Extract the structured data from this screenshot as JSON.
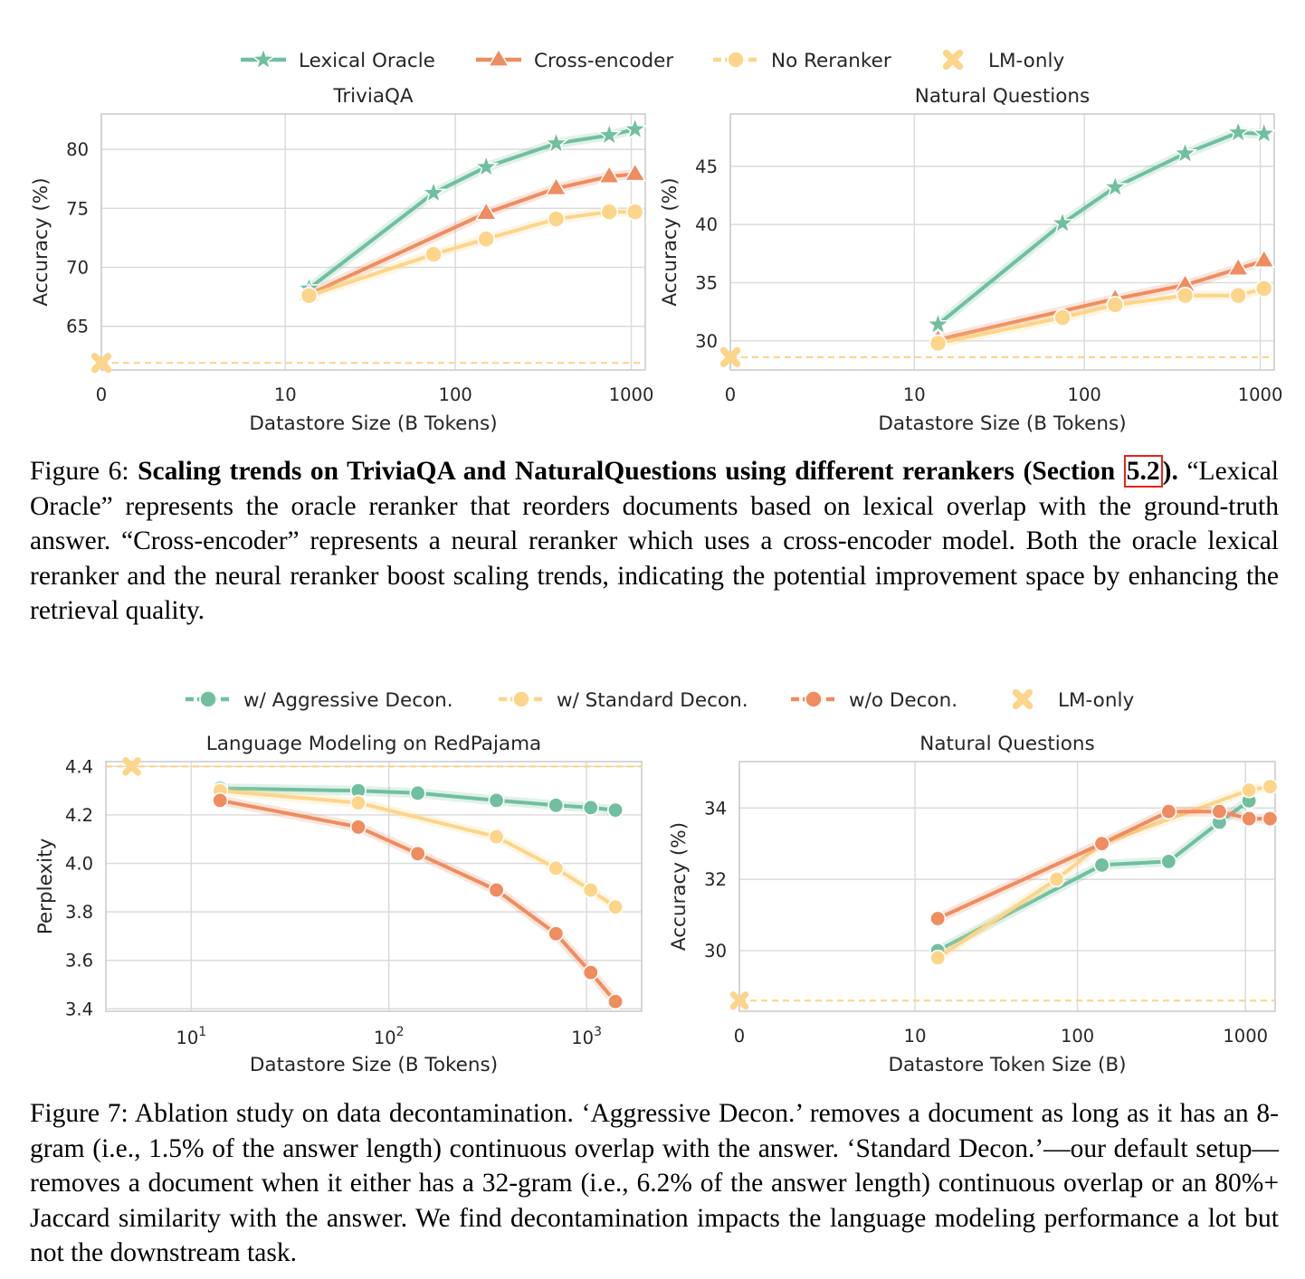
{
  "colors": {
    "lexical_oracle": "#70bf9f",
    "cross_encoder": "#ef8c60",
    "no_reranker": "#fcd58a",
    "lm_only": "#fcd58a",
    "aggressive": "#70bf9f",
    "standard": "#fcd58a",
    "no_decon": "#ef8c60",
    "grid": "#d9d9d9",
    "frame": "#cccccc",
    "ref_box": "#e8231b"
  },
  "figure6": {
    "legend": [
      {
        "name": "Lexical Oracle",
        "marker": "star",
        "color": "#70bf9f"
      },
      {
        "name": "Cross-encoder",
        "marker": "triangle",
        "color": "#ef8c60"
      },
      {
        "name": "No Reranker",
        "marker": "circle",
        "color": "#fcd58a"
      },
      {
        "name": "LM-only",
        "marker": "x",
        "color": "#fcd58a"
      }
    ],
    "caption": {
      "label": "Figure 6: ",
      "bold_a": "Scaling trends on TriviaQA and NaturalQuestions using different rerankers (Section ",
      "ref": "5.2",
      "bold_b": ").",
      "rest": " “Lexical Oracle” represents the oracle reranker that reorders documents based on lexical overlap with the ground-truth answer. “Cross-encoder” represents a neural reranker which uses a cross-encoder model. Both the oracle lexical reranker and the neural reranker boost scaling trends, indicating the potential improvement space by enhancing the retrieval quality."
    }
  },
  "figure7": {
    "legend": [
      {
        "name": "w/ Aggressive Decon.",
        "marker": "circle",
        "color": "#70bf9f"
      },
      {
        "name": "w/ Standard Decon.",
        "marker": "circle",
        "color": "#fcd58a"
      },
      {
        "name": "w/o Decon.",
        "marker": "circle",
        "color": "#ef8c60"
      },
      {
        "name": "LM-only",
        "marker": "x",
        "color": "#fcd58a"
      }
    ],
    "caption": {
      "text": "Figure 7: Ablation study on data decontamination. ‘Aggressive Decon.’ removes a document as long as it has an 8-gram (i.e., 1.5% of the answer length) continuous overlap with the answer. ‘Standard Decon.’—our default setup—removes a document when it either has a 32-gram (i.e., 6.2% of the answer length) continuous overlap or an 80%+ Jaccard similarity with the answer. We find decontamination impacts the language modeling performance a lot but not the downstream task."
    }
  },
  "chart_data": [
    {
      "id": "triviaqa",
      "type": "line",
      "title": "TriviaQA",
      "xlabel": "Datastore Size (B Tokens)",
      "ylabel": "Accuracy (%)",
      "xscale": "symlog",
      "xlim": [
        0,
        1200
      ],
      "ylim": [
        61.3,
        83
      ],
      "xticks": [
        0,
        10,
        100,
        1000
      ],
      "xticklabels": [
        "0",
        "10",
        "100",
        "1000"
      ],
      "yticks": [
        65,
        70,
        75,
        80
      ],
      "yticklabels": [
        "65",
        "70",
        "75",
        "80"
      ],
      "grid": true,
      "series": [
        {
          "name": "Lexical Oracle",
          "marker": "star",
          "color": "#70bf9f",
          "x": [
            14,
            75,
            150,
            375,
            750,
            1050
          ],
          "y": [
            68.2,
            76.3,
            78.5,
            80.5,
            81.2,
            81.7
          ]
        },
        {
          "name": "Cross-encoder",
          "marker": "triangle",
          "color": "#ef8c60",
          "x": [
            14,
            150,
            375,
            750,
            1050
          ],
          "y": [
            67.7,
            74.6,
            76.7,
            77.7,
            77.9
          ]
        },
        {
          "name": "No Reranker",
          "marker": "circle",
          "color": "#fcd58a",
          "x": [
            14,
            75,
            150,
            375,
            750,
            1050
          ],
          "y": [
            67.6,
            71.1,
            72.4,
            74.1,
            74.7,
            74.7
          ]
        }
      ],
      "lm_only": {
        "name": "LM-only",
        "marker": "x",
        "color": "#fcd58a",
        "x": 0,
        "y": 61.9
      }
    },
    {
      "id": "nq1",
      "type": "line",
      "title": "Natural Questions",
      "xlabel": "Datastore Size (B Tokens)",
      "ylabel": "Accuracy (%)",
      "xscale": "symlog",
      "xlim": [
        0,
        1200
      ],
      "ylim": [
        27.5,
        49.5
      ],
      "xticks": [
        0,
        10,
        100,
        1000
      ],
      "xticklabels": [
        "0",
        "10",
        "100",
        "1000"
      ],
      "yticks": [
        30,
        35,
        40,
        45
      ],
      "yticklabels": [
        "30",
        "35",
        "40",
        "45"
      ],
      "grid": true,
      "series": [
        {
          "name": "Lexical Oracle",
          "marker": "star",
          "color": "#70bf9f",
          "x": [
            14,
            75,
            150,
            375,
            750,
            1050
          ],
          "y": [
            31.4,
            40.1,
            43.2,
            46.1,
            47.9,
            47.8
          ]
        },
        {
          "name": "Cross-encoder",
          "marker": "triangle",
          "color": "#ef8c60",
          "x": [
            14,
            150,
            375,
            750,
            1050
          ],
          "y": [
            30.1,
            33.6,
            34.8,
            36.2,
            36.9
          ]
        },
        {
          "name": "No Reranker",
          "marker": "circle",
          "color": "#fcd58a",
          "x": [
            14,
            75,
            150,
            375,
            750,
            1050
          ],
          "y": [
            29.8,
            32.0,
            33.1,
            33.9,
            33.9,
            34.5
          ]
        }
      ],
      "lm_only": {
        "name": "LM-only",
        "marker": "x",
        "color": "#fcd58a",
        "x": 0,
        "y": 28.6
      }
    },
    {
      "id": "redpajama",
      "type": "line",
      "title": "Language Modeling on RedPajama",
      "xlabel": "Datastore Size (B Tokens)",
      "ylabel": "Perplexity",
      "xscale": "log",
      "xlim": [
        3.7,
        1900
      ],
      "ylim": [
        3.39,
        4.42
      ],
      "xticks": [
        10,
        100,
        1000
      ],
      "xticklabels": [
        "1",
        "2",
        "3"
      ],
      "yticks": [
        3.4,
        3.6,
        3.8,
        4.0,
        4.2,
        4.4
      ],
      "yticklabels": [
        "3.4",
        "3.6",
        "3.8",
        "4.0",
        "4.2",
        "4.4"
      ],
      "grid": true,
      "series": [
        {
          "name": "w/ Aggressive Decon.",
          "marker": "circle",
          "color": "#70bf9f",
          "x": [
            14,
            70,
            140,
            350,
            700,
            1050,
            1400
          ],
          "y": [
            4.31,
            4.3,
            4.29,
            4.26,
            4.24,
            4.23,
            4.22
          ]
        },
        {
          "name": "w/ Standard Decon.",
          "marker": "circle",
          "color": "#fcd58a",
          "x": [
            14,
            70,
            350,
            700,
            1050,
            1400
          ],
          "y": [
            4.3,
            4.25,
            4.11,
            3.98,
            3.89,
            3.82
          ]
        },
        {
          "name": "w/o Decon.",
          "marker": "circle",
          "color": "#ef8c60",
          "x": [
            14,
            70,
            140,
            350,
            700,
            1050,
            1400
          ],
          "y": [
            4.26,
            4.15,
            4.04,
            3.89,
            3.71,
            3.55,
            3.43
          ]
        }
      ],
      "lm_only": {
        "name": "LM-only",
        "marker": "x",
        "color": "#fcd58a",
        "x": 5,
        "y": 4.4
      }
    },
    {
      "id": "nq2",
      "type": "line",
      "title": "Natural Questions",
      "xlabel": "Datastore Token Size (B)",
      "ylabel": "Accuracy (%)",
      "xscale": "symlog",
      "xlim": [
        0,
        1500
      ],
      "ylim": [
        28.3,
        35.3
      ],
      "xticks": [
        0,
        10,
        100,
        1000
      ],
      "xticklabels": [
        "0",
        "10",
        "100",
        "1000"
      ],
      "yticks": [
        30,
        32,
        34
      ],
      "yticklabels": [
        "30",
        "32",
        "34"
      ],
      "grid": true,
      "series": [
        {
          "name": "w/ Aggressive Decon.",
          "marker": "circle",
          "color": "#70bf9f",
          "x": [
            14,
            140,
            350,
            700,
            1050
          ],
          "y": [
            30.0,
            32.4,
            32.5,
            33.6,
            34.2
          ]
        },
        {
          "name": "w/ Standard Decon.",
          "marker": "circle",
          "color": "#fcd58a",
          "x": [
            14,
            75,
            140,
            1050,
            1400
          ],
          "y": [
            29.8,
            32.0,
            33.0,
            34.5,
            34.6
          ]
        },
        {
          "name": "w/o Decon.",
          "marker": "circle",
          "color": "#ef8c60",
          "x": [
            14,
            140,
            350,
            700,
            1050,
            1400
          ],
          "y": [
            30.9,
            33.0,
            33.9,
            33.9,
            33.7,
            33.7
          ]
        }
      ],
      "lm_only": {
        "name": "LM-only",
        "marker": "x",
        "color": "#fcd58a",
        "x": 0,
        "y": 28.6
      }
    }
  ]
}
